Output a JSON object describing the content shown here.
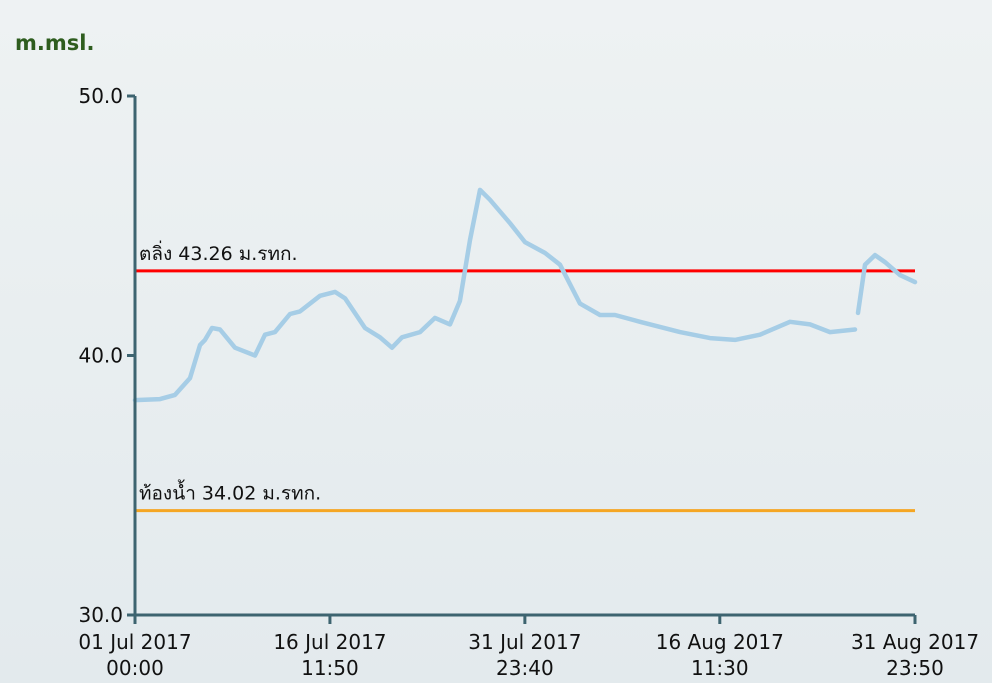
{
  "chart_data": {
    "type": "line",
    "y_label": "m.msl.",
    "x": [
      "2017-07-01T00:00",
      "2017-07-02T23:40",
      "2017-07-04T04:20",
      "2017-07-05T08:50",
      "2017-07-06T04:00",
      "2017-07-06T13:30",
      "2017-07-07T02:50",
      "2017-07-07T18:10",
      "2017-07-08T22:50",
      "2017-07-10T12:50",
      "2017-07-11T08:00",
      "2017-07-12T03:00",
      "2017-07-13T07:40",
      "2017-07-14T02:40",
      "2017-07-15T16:50",
      "2017-07-16T21:30",
      "2017-07-17T16:40",
      "2017-07-19T06:40",
      "2017-07-20T11:20",
      "2017-07-21T10:10",
      "2017-07-22T05:20",
      "2017-07-23T15:40",
      "2017-07-24T20:10",
      "2017-07-26T00:50",
      "2017-07-26T19:50",
      "2017-07-27T15:00",
      "2017-07-28T10:10",
      "2017-07-29T05:10",
      "2017-07-30T19:20",
      "2017-07-31T23:50",
      "2017-08-02T14:10",
      "2017-08-03T18:40",
      "2017-08-05T08:50",
      "2017-08-06T23:00",
      "2017-08-08T03:40",
      "2017-08-10T03:20",
      "2017-08-13T07:40",
      "2017-08-15T16:50",
      "2017-08-17T16:30",
      "2017-08-19T16:10",
      "2017-08-22T01:20",
      "2017-08-23T15:30",
      "2017-08-25T05:40",
      "2017-08-27T05:20",
      "2017-08-27T08:00",
      "2017-08-27T11:10",
      "2017-08-28T00:30",
      "2017-08-28T19:30",
      "2017-08-29T14:40",
      "2017-08-30T19:10",
      "2017-08-31T23:50"
    ],
    "series": [
      {
        "color": "#a6cde6",
        "values": [
          38.28,
          38.32,
          38.48,
          39.13,
          40.4,
          40.6,
          41.06,
          41.0,
          40.3,
          40.0,
          40.8,
          40.9,
          41.6,
          41.7,
          42.3,
          42.45,
          42.2,
          41.06,
          40.7,
          40.3,
          40.7,
          40.9,
          41.45,
          41.2,
          42.1,
          44.45,
          46.38,
          46.0,
          45.1,
          44.37,
          43.95,
          43.5,
          42.0,
          41.56,
          41.56,
          41.3,
          40.9,
          40.67,
          40.6,
          40.8,
          41.3,
          41.2,
          40.9,
          41.0,
          null,
          41.64,
          43.5,
          43.87,
          43.6,
          43.1,
          42.83
        ]
      }
    ],
    "xlim": [
      "2017-07-01T00:00",
      "2017-08-31T23:50"
    ],
    "xticks": [
      {
        "value": "2017-07-01T00:00",
        "label": [
          "01 Jul 2017",
          "00:00"
        ]
      },
      {
        "value": "2017-07-16T11:50",
        "label": [
          "16 Jul 2017",
          "11:50"
        ]
      },
      {
        "value": "2017-07-31T23:40",
        "label": [
          "31 Jul 2017",
          "23:40"
        ]
      },
      {
        "value": "2017-08-16T11:30",
        "label": [
          "16 Aug 2017",
          "11:30"
        ]
      },
      {
        "value": "2017-08-31T23:50",
        "label": [
          "31 Aug 2017",
          "23:50"
        ]
      }
    ],
    "ylim": [
      30,
      50
    ],
    "yticks": [
      {
        "value": 30,
        "label": "30.0"
      },
      {
        "value": 40,
        "label": "40.0"
      },
      {
        "value": 50,
        "label": "50.0"
      }
    ],
    "reference_lines": [
      {
        "label": "ตลิ่ง 43.26 ม.รทก.",
        "value": 43.26,
        "color": "#ff0000"
      },
      {
        "label": "ท้องน้ำ 34.02 ม.รทก.",
        "value": 34.02,
        "color": "#f5a623"
      }
    ]
  }
}
